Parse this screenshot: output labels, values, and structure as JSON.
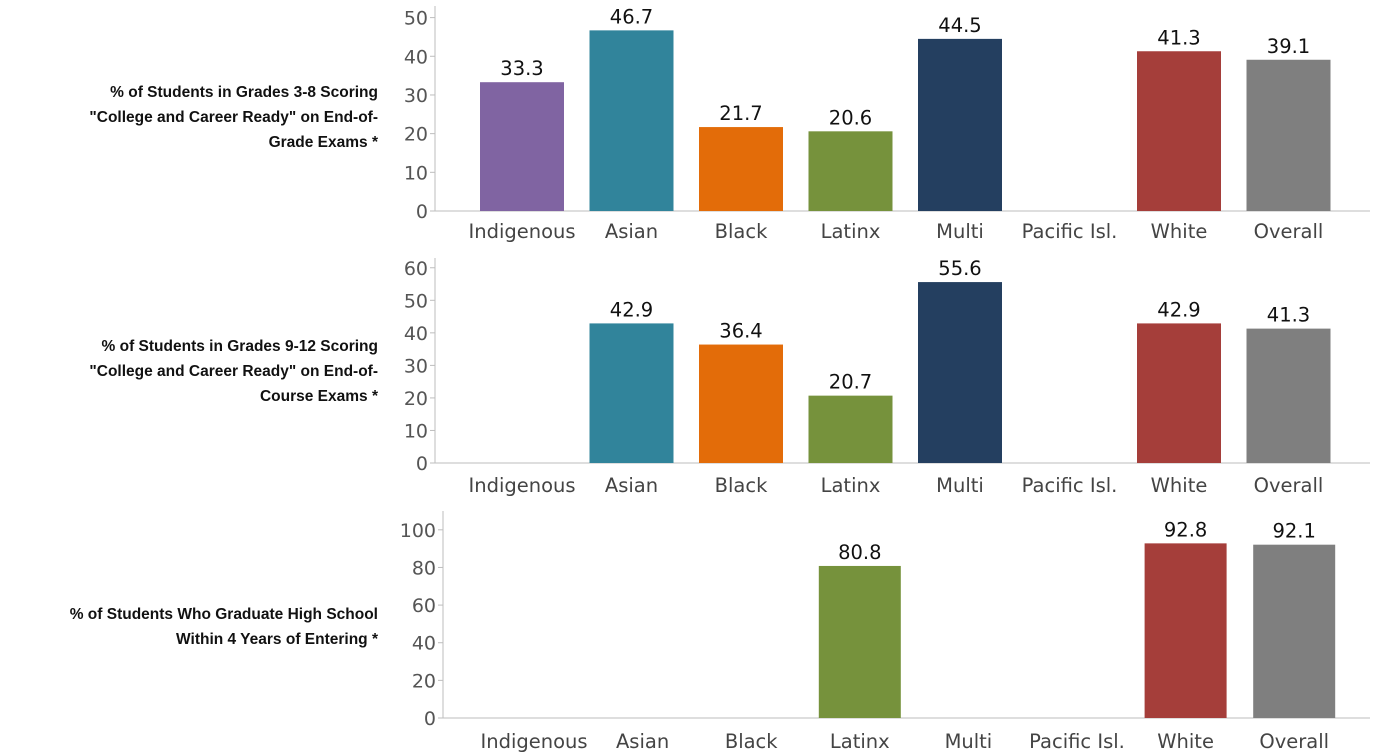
{
  "chart_data": [
    {
      "type": "bar",
      "row_label_lines": [
        "% of Students in Grades 3-8 Scoring",
        "\"College and Career Ready\" on End-of-",
        "Grade Exams *"
      ],
      "categories": [
        "Indigenous",
        "Asian",
        "Black",
        "Latinx",
        "Multi",
        "Pacific Isl.",
        "White",
        "Overall"
      ],
      "values": [
        33.3,
        46.7,
        21.7,
        20.6,
        44.5,
        null,
        41.3,
        39.1
      ],
      "value_labels": [
        "33.3",
        "46.7",
        "21.7",
        "20.6",
        "44.5",
        "",
        "41.3",
        "39.1"
      ],
      "colors": [
        "#8064a2",
        "#31849b",
        "#e36c09",
        "#76923c",
        "#243f60",
        "#cccccc",
        "#a53e3a",
        "#7f7f7f"
      ],
      "ylim": [
        0,
        53
      ],
      "yticks": [
        0,
        10,
        20,
        30,
        40,
        50
      ],
      "grid": false
    },
    {
      "type": "bar",
      "row_label_lines": [
        "% of Students in Grades 9-12 Scoring",
        "\"College and Career Ready\" on End-of-",
        "Course Exams *"
      ],
      "categories": [
        "Indigenous",
        "Asian",
        "Black",
        "Latinx",
        "Multi",
        "Pacific Isl.",
        "White",
        "Overall"
      ],
      "values": [
        null,
        42.9,
        36.4,
        20.7,
        55.6,
        null,
        42.9,
        41.3
      ],
      "value_labels": [
        "",
        "42.9",
        "36.4",
        "20.7",
        "55.6",
        "",
        "42.9",
        "41.3"
      ],
      "colors": [
        "#8064a2",
        "#31849b",
        "#e36c09",
        "#76923c",
        "#243f60",
        "#cccccc",
        "#a53e3a",
        "#7f7f7f"
      ],
      "ylim": [
        0,
        63
      ],
      "yticks": [
        0,
        10,
        20,
        30,
        40,
        50,
        60
      ],
      "grid": false
    },
    {
      "type": "bar",
      "row_label_lines": [
        "% of Students Who Graduate High School",
        "Within 4 Years of Entering *"
      ],
      "categories": [
        "Indigenous",
        "Asian",
        "Black",
        "Latinx",
        "Multi",
        "Pacific Isl.",
        "White",
        "Overall"
      ],
      "values": [
        null,
        null,
        null,
        80.8,
        null,
        null,
        92.8,
        92.1
      ],
      "value_labels": [
        "",
        "",
        "",
        "80.8",
        "",
        "",
        "92.8",
        "92.1"
      ],
      "colors": [
        "#8064a2",
        "#31849b",
        "#e36c09",
        "#76923c",
        "#243f60",
        "#cccccc",
        "#a53e3a",
        "#7f7f7f"
      ],
      "ylim": [
        0,
        110
      ],
      "yticks": [
        0,
        20,
        40,
        60,
        80,
        100
      ],
      "grid": false
    }
  ]
}
